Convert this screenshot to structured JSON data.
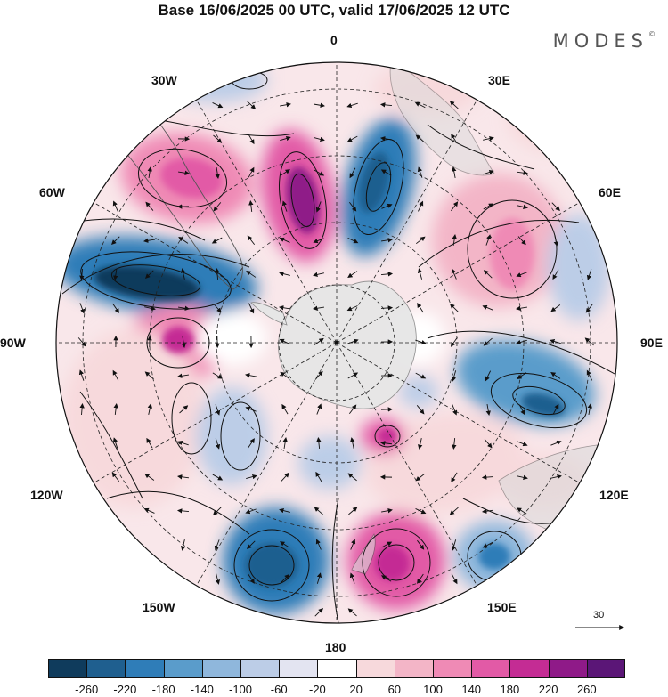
{
  "title": "Base 16/06/2025 00 UTC, valid 17/06/2025 12 UTC",
  "brand": "MODES",
  "brand_mark": "©",
  "longitude_labels": {
    "lon_0": "0",
    "lon_30e": "30E",
    "lon_60e": "60E",
    "lon_90e": "90E",
    "lon_120e": "120E",
    "lon_150e": "150E",
    "lon_180": "180",
    "lon_150w": "150W",
    "lon_120w": "120W",
    "lon_90w": "90W",
    "lon_60w": "60W",
    "lon_30w": "30W"
  },
  "wind_reference": {
    "value": "30"
  },
  "colorbar": {
    "colors": [
      "#0f3b5c",
      "#1f5f8f",
      "#2f7db8",
      "#5a9ccb",
      "#8fb7dc",
      "#bccde7",
      "#e3e4f1",
      "#ffffff",
      "#f7d9dc",
      "#f3b5c7",
      "#ef8ab5",
      "#e25aa6",
      "#c42c94",
      "#8f1a88",
      "#5b1677"
    ],
    "labels": [
      "-260",
      "-220",
      "-180",
      "-140",
      "-100",
      "-60",
      "-20",
      "20",
      "60",
      "100",
      "140",
      "180",
      "220",
      "260"
    ]
  }
}
